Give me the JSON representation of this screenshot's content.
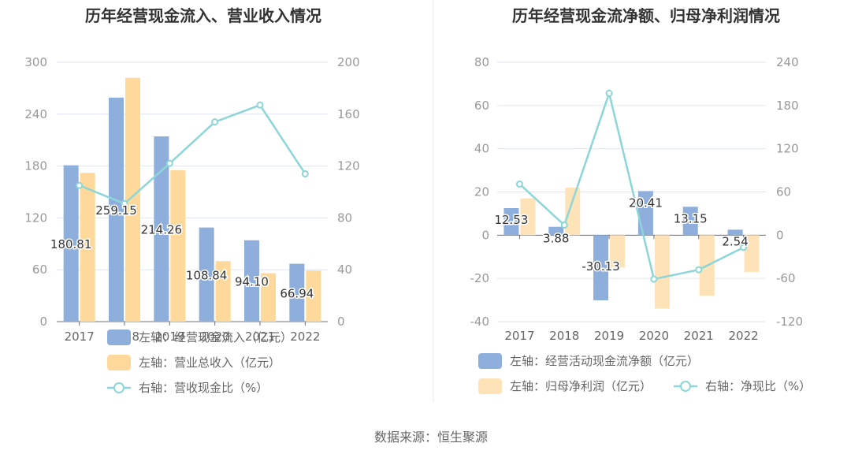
{
  "source": "数据来源：恒生聚源",
  "chart_data": [
    {
      "type": "bar",
      "title": "历年经营现金流入、营业收入情况",
      "categories": [
        "2017",
        "2018",
        "2019",
        "2020",
        "2021",
        "2022"
      ],
      "ylim_left": [
        0,
        300
      ],
      "left_ticks": [
        "0",
        "60",
        "120",
        "180",
        "240",
        "300"
      ],
      "ylim_right": [
        0,
        200
      ],
      "right_ticks": [
        "0",
        "40",
        "80",
        "120",
        "160",
        "200"
      ],
      "series": [
        {
          "name": "左轴：经营现金流入（亿元）",
          "axis": "left",
          "kind": "bar",
          "color": "#8eaedc",
          "values": [
            180.81,
            259.15,
            214.26,
            108.84,
            94.1,
            66.94
          ],
          "labels": [
            "180.81",
            "259.15",
            "214.26",
            "108.84",
            "94.10",
            "66.94"
          ]
        },
        {
          "name": "左轴：营业总收入（亿元）",
          "axis": "left",
          "kind": "bar",
          "color": "#ffd99b",
          "values": [
            172,
            282,
            175,
            70,
            56,
            59
          ]
        },
        {
          "name": "右轴：营收现金比（%）",
          "axis": "right",
          "kind": "line",
          "color": "#8dd6d8",
          "values": [
            105,
            91,
            122,
            154,
            167,
            114
          ]
        }
      ]
    },
    {
      "type": "bar",
      "title": "历年经营现金流净额、归母净利润情况",
      "categories": [
        "2017",
        "2018",
        "2019",
        "2020",
        "2021",
        "2022"
      ],
      "ylim_left": [
        -40,
        80
      ],
      "left_ticks": [
        "-40",
        "-20",
        "0",
        "20",
        "40",
        "60",
        "80"
      ],
      "ylim_right": [
        -120,
        240
      ],
      "right_ticks": [
        "-120",
        "-60",
        "0",
        "60",
        "120",
        "180",
        "240"
      ],
      "series": [
        {
          "name": "左轴：经营活动现金流净额（亿元）",
          "axis": "left",
          "kind": "bar",
          "color": "#8eaedc",
          "values": [
            12.53,
            3.88,
            -30.13,
            20.41,
            13.15,
            2.54
          ],
          "labels": [
            "12.53",
            "3.88",
            "-30.13",
            "20.41",
            "13.15",
            "2.54"
          ]
        },
        {
          "name": "左轴：归母净利润（亿元）",
          "axis": "left",
          "kind": "bar",
          "color": "#ffe3b8",
          "values": [
            17,
            22,
            -15,
            -34,
            -28,
            -17
          ]
        },
        {
          "name": "右轴：净现比（%）",
          "axis": "right",
          "kind": "line",
          "color": "#8dd6d8",
          "values": [
            71,
            14,
            197,
            -61,
            -48,
            -17
          ]
        }
      ]
    }
  ]
}
